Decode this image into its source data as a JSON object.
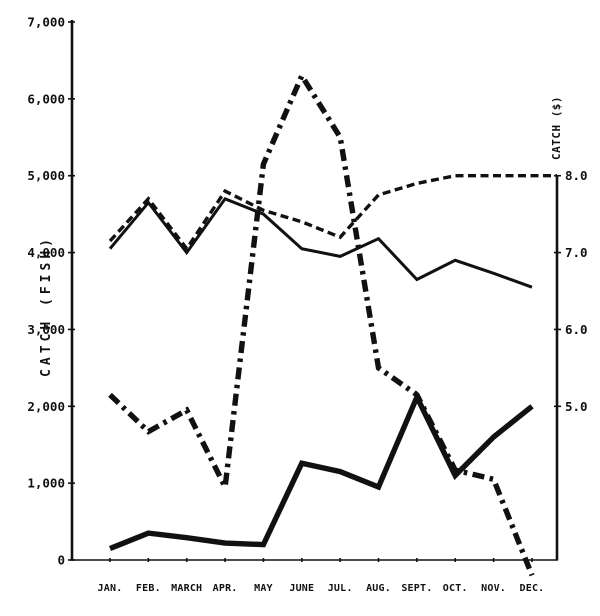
{
  "chart_data": {
    "type": "line",
    "title": "",
    "categories": [
      "JAN.",
      "FEB.",
      "MARCH",
      "APR.",
      "MAY",
      "JUNE",
      "JUL.",
      "AUG.",
      "SEPT.",
      "OCT.",
      "NOV.",
      "DEC."
    ],
    "left_axis": {
      "label": "CATCH (FISH)",
      "ticks": [
        "7,000",
        "6,000",
        "5,000",
        "4,000",
        "3,000",
        "2,000",
        "1,000",
        "0"
      ],
      "tick_values": [
        7000,
        6000,
        5000,
        4000,
        3000,
        2000,
        1000,
        0
      ],
      "range": [
        0,
        7000
      ]
    },
    "right_axis": {
      "label": "CATCH ($)",
      "ticks": [
        "8.0",
        "7.0",
        "6.0",
        "5.0"
      ],
      "tick_values": [
        8.0,
        7.0,
        6.0,
        5.0
      ],
      "range": [
        5.0,
        8.0
      ],
      "alignment": "right-axis 5.0-8.0 aligns with left-axis 2,000-5,000"
    },
    "grid": false,
    "legend": "none",
    "colors": {
      "ink": "#111111",
      "background": "#ffffff"
    },
    "series": [
      {
        "name": "catch-fish-thin-solid",
        "axis": "left",
        "style": "solid-thin",
        "values": [
          4050,
          4650,
          4000,
          4700,
          4500,
          4050,
          3950,
          4180,
          3650,
          3900,
          3730,
          3550
        ]
      },
      {
        "name": "catch-dollars-dashed",
        "axis": "right",
        "style": "dashed",
        "extend_to_right_axis": true,
        "values": [
          7.15,
          7.7,
          7.05,
          7.8,
          7.55,
          7.4,
          7.2,
          7.75,
          7.9,
          8.0,
          8.0,
          8.0
        ]
      },
      {
        "name": "catch-fish-dashdot-heavy",
        "axis": "left",
        "style": "dashdot-heavy",
        "note": "line overshoots below the zero baseline at DEC.",
        "values": [
          2150,
          1670,
          1950,
          950,
          5150,
          6300,
          5500,
          2500,
          2150,
          1170,
          1050,
          -200
        ]
      },
      {
        "name": "catch-fish-heavy-solid",
        "axis": "left",
        "style": "solid-heavy",
        "values": [
          150,
          350,
          290,
          220,
          200,
          1260,
          1150,
          950,
          2120,
          1100,
          1600,
          2000
        ]
      }
    ]
  }
}
